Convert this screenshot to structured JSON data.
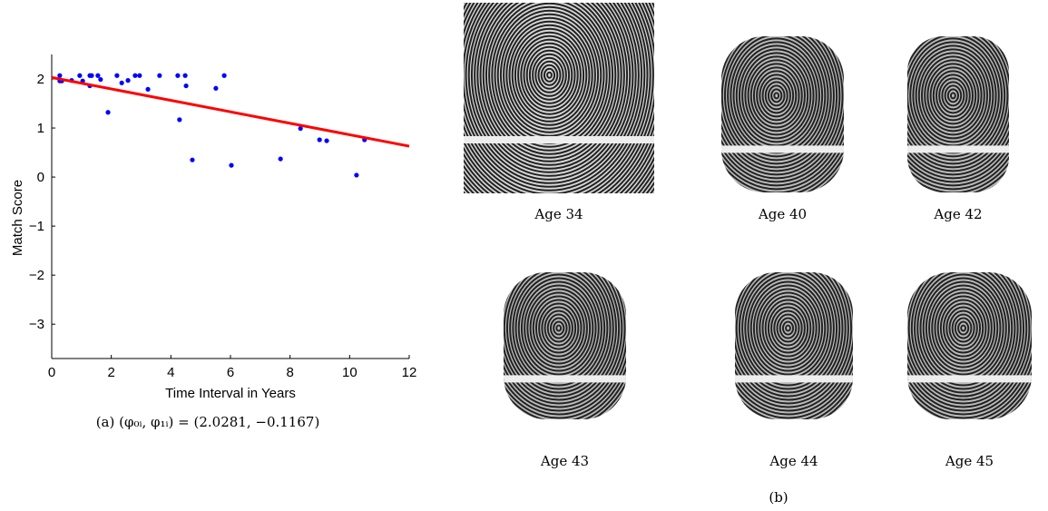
{
  "chart_data": {
    "type": "scatter",
    "x_label": "Time Interval in Years",
    "y_label": "Match Score",
    "caption": "(a) (φ₀ᵢ, φ₁ᵢ) = (2.0281, −0.1167)",
    "xlim": [
      0,
      12
    ],
    "ylim": [
      -3.7,
      2.5
    ],
    "xticks": [
      0,
      2,
      4,
      6,
      8,
      10,
      12
    ],
    "yticks": [
      {
        "value": -3,
        "label": "−3"
      },
      {
        "value": -2,
        "label": "−2"
      },
      {
        "value": -1,
        "label": "−1"
      },
      0,
      1,
      2
    ],
    "series": [
      {
        "color": "#0000ff",
        "x": [
          0.27,
          0.27,
          0.34,
          0.67,
          0.94,
          1.04,
          1.28,
          1.28,
          1.34,
          1.55,
          1.64,
          1.89,
          2.19,
          2.35,
          2.56,
          2.8,
          2.95,
          3.23,
          3.62,
          4.23,
          4.29,
          4.48,
          4.51,
          4.72,
          5.51,
          5.79,
          6.03,
          7.68,
          8.35,
          8.99,
          9.23,
          10.23,
          10.5
        ],
        "values": [
          2.07,
          1.96,
          1.96,
          1.97,
          2.07,
          1.96,
          2.07,
          1.86,
          2.07,
          2.07,
          1.99,
          1.32,
          2.07,
          1.92,
          1.97,
          2.07,
          2.07,
          1.79,
          2.07,
          2.07,
          1.17,
          2.07,
          1.86,
          0.35,
          1.81,
          2.07,
          0.24,
          0.37,
          0.99,
          0.76,
          0.74,
          0.04,
          0.76
        ]
      },
      {
        "type": "line",
        "color": "#ff0000",
        "x": [
          0,
          12
        ],
        "values": [
          2.03,
          0.63
        ]
      }
    ]
  },
  "figure_b": {
    "ages": [
      "Age 34",
      "Age 40",
      "Age 42",
      "Age 43",
      "Age 44",
      "Age 45"
    ],
    "caption": "(b)"
  }
}
